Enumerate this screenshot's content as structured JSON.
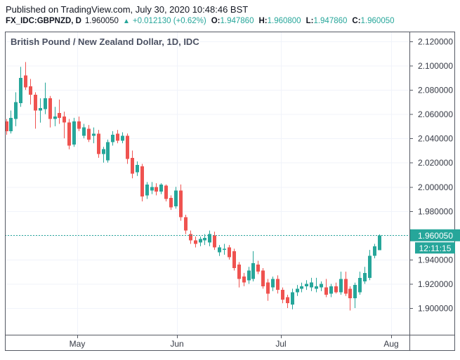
{
  "header": {
    "published_line": "Published on TradingView.com, July 30, 2020 10:48:46 BST",
    "symbol": "FX_IDC:GBPNZD, D",
    "last_price": "1.960050",
    "change_direction": "▲",
    "change": "+0.012130 (+0.62%)",
    "ohlc": [
      {
        "label": "O:",
        "value": "1.947860"
      },
      {
        "label": "H:",
        "value": "1.960800"
      },
      {
        "label": "L:",
        "value": "1.947860"
      },
      {
        "label": "C:",
        "value": "1.960050"
      }
    ]
  },
  "colors": {
    "up": "#26a69a",
    "down": "#ef5350",
    "grid": "#f0f3fa",
    "frame": "#555963",
    "axis_text": "#363a45",
    "price_line": "#26a69a",
    "badge_bg": "#26a69a",
    "badge_text": "#ffffff"
  },
  "chart_data": {
    "type": "candlestick",
    "title": "British Pound / New Zealand Dollar, 1D, IDC",
    "symbol": "FX_IDC:GBPNZD",
    "interval": "1D",
    "grid": true,
    "x_ticks": [
      "May",
      "Jun",
      "Jul",
      "Aug"
    ],
    "y_ticks": [
      "2.120000",
      "2.100000",
      "2.080000",
      "2.060000",
      "2.040000",
      "2.020000",
      "2.000000",
      "1.980000",
      "1.960000",
      "1.940000",
      "1.920000",
      "1.900000"
    ],
    "ylim": [
      1.878,
      2.128
    ],
    "current_price": 1.96005,
    "current_price_label": "1.960050",
    "countdown": "12:11:15",
    "candles": [
      [
        2.054,
        2.056,
        2.043,
        2.046
      ],
      [
        2.046,
        2.063,
        2.044,
        2.057
      ],
      [
        2.056,
        2.078,
        2.05,
        2.07
      ],
      [
        2.069,
        2.099,
        2.066,
        2.09
      ],
      [
        2.092,
        2.103,
        2.08,
        2.082
      ],
      [
        2.083,
        2.089,
        2.068,
        2.076
      ],
      [
        2.076,
        2.078,
        2.048,
        2.063
      ],
      [
        2.063,
        2.073,
        2.053,
        2.065
      ],
      [
        2.064,
        2.086,
        2.06,
        2.073
      ],
      [
        2.073,
        2.075,
        2.049,
        2.056
      ],
      [
        2.056,
        2.066,
        2.05,
        2.058
      ],
      [
        2.061,
        2.072,
        2.052,
        2.057
      ],
      [
        2.058,
        2.062,
        2.04,
        2.053
      ],
      [
        2.053,
        2.056,
        2.031,
        2.034
      ],
      [
        2.035,
        2.057,
        2.033,
        2.054
      ],
      [
        2.054,
        2.058,
        2.046,
        2.048
      ],
      [
        2.042,
        2.052,
        2.04,
        2.049
      ],
      [
        2.048,
        2.051,
        2.037,
        2.039
      ],
      [
        2.042,
        2.049,
        2.036,
        2.044
      ],
      [
        2.044,
        2.047,
        2.024,
        2.027
      ],
      [
        2.027,
        2.033,
        2.02,
        2.031
      ],
      [
        2.022,
        2.039,
        2.02,
        2.037
      ],
      [
        2.037,
        2.046,
        2.034,
        2.043
      ],
      [
        2.044,
        2.047,
        2.036,
        2.038
      ],
      [
        2.038,
        2.045,
        2.036,
        2.042
      ],
      [
        2.042,
        2.044,
        2.019,
        2.023
      ],
      [
        2.024,
        2.03,
        2.007,
        2.011
      ],
      [
        2.012,
        2.021,
        2.009,
        2.018
      ],
      [
        2.017,
        2.019,
        1.988,
        1.992
      ],
      [
        1.993,
        2.004,
        1.99,
        2.002
      ],
      [
        1.997,
        2.004,
        1.994,
        2.0
      ],
      [
        2.0,
        2.003,
        1.993,
        1.996
      ],
      [
        1.996,
        2.003,
        1.994,
        2.002
      ],
      [
        2.001,
        2.002,
        1.988,
        1.99
      ],
      [
        1.991,
        1.993,
        1.981,
        1.983
      ],
      [
        1.984,
        2.0,
        1.982,
        1.997
      ],
      [
        1.997,
        2.002,
        1.972,
        1.975
      ],
      [
        1.975,
        1.977,
        1.961,
        1.964
      ],
      [
        1.961,
        1.964,
        1.953,
        1.956
      ],
      [
        1.956,
        1.959,
        1.95,
        1.953
      ],
      [
        1.954,
        1.959,
        1.951,
        1.957
      ],
      [
        1.956,
        1.961,
        1.952,
        1.958
      ],
      [
        1.954,
        1.964,
        1.951,
        1.961
      ],
      [
        1.96,
        1.963,
        1.948,
        1.95
      ],
      [
        1.946,
        1.952,
        1.943,
        1.95
      ],
      [
        1.948,
        1.953,
        1.944,
        1.949
      ],
      [
        1.95,
        1.952,
        1.94,
        1.942
      ],
      [
        1.947,
        1.949,
        1.931,
        1.933
      ],
      [
        1.936,
        1.938,
        1.917,
        1.924
      ],
      [
        1.926,
        1.929,
        1.918,
        1.921
      ],
      [
        1.923,
        1.934,
        1.92,
        1.931
      ],
      [
        1.924,
        1.947,
        1.922,
        1.937
      ],
      [
        1.936,
        1.939,
        1.928,
        1.93
      ],
      [
        1.931,
        1.933,
        1.916,
        1.918
      ],
      [
        1.921,
        1.924,
        1.906,
        1.912
      ],
      [
        1.917,
        1.926,
        1.914,
        1.924
      ],
      [
        1.924,
        1.927,
        1.912,
        1.915
      ],
      [
        1.915,
        1.917,
        1.904,
        1.907
      ],
      [
        1.909,
        1.911,
        1.9,
        1.904
      ],
      [
        1.903,
        1.916,
        1.899,
        1.913
      ],
      [
        1.913,
        1.919,
        1.91,
        1.916
      ],
      [
        1.916,
        1.921,
        1.913,
        1.918
      ],
      [
        1.918,
        1.923,
        1.915,
        1.92
      ],
      [
        1.917,
        1.925,
        1.914,
        1.921
      ],
      [
        1.916,
        1.925,
        1.913,
        1.918
      ],
      [
        1.917,
        1.922,
        1.914,
        1.92
      ],
      [
        1.917,
        1.924,
        1.909,
        1.911
      ],
      [
        1.912,
        1.92,
        1.909,
        1.918
      ],
      [
        1.918,
        1.921,
        1.912,
        1.913
      ],
      [
        1.913,
        1.93,
        1.911,
        1.924
      ],
      [
        1.924,
        1.93,
        1.91,
        1.912
      ],
      [
        1.916,
        1.918,
        1.898,
        1.908
      ],
      [
        1.908,
        1.921,
        1.9,
        1.919
      ],
      [
        1.913,
        1.93,
        1.911,
        1.925
      ],
      [
        1.922,
        1.934,
        1.92,
        1.929
      ],
      [
        1.925,
        1.948,
        1.923,
        1.943
      ],
      [
        1.943,
        1.953,
        1.941,
        1.951
      ],
      [
        1.94786,
        1.9608,
        1.94786,
        1.96005
      ]
    ]
  }
}
